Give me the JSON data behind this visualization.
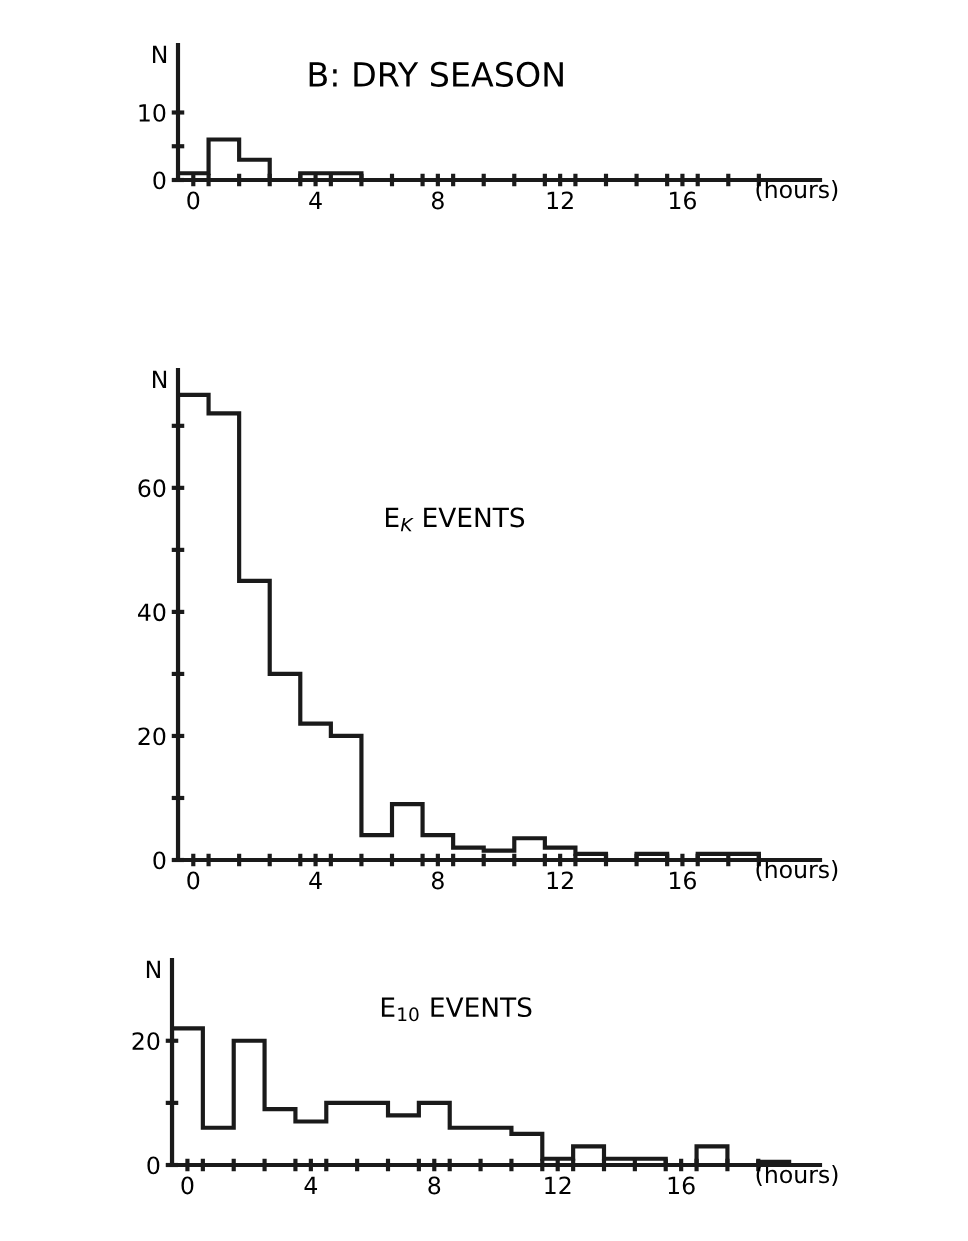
{
  "chart_data": [
    {
      "type": "histogram",
      "title": "B: DRY SEASON",
      "xlabel": "(hours)",
      "ylabel": "N",
      "bins": [
        -0.5,
        0.5,
        1.5,
        2.5,
        3.5,
        4.5,
        5.5,
        6.5,
        7.5,
        8.5,
        9.5,
        10.5,
        11.5,
        12.5,
        13.5,
        14.5,
        15.5,
        16.5,
        17.5,
        18.5,
        19.5
      ],
      "values": [
        1,
        6,
        3,
        0,
        1,
        1,
        0,
        0,
        0,
        0,
        0,
        0,
        0,
        0,
        0,
        0,
        0,
        0,
        0,
        0
      ],
      "color": "#1a1a1a",
      "xlim": [
        -0.5,
        20.5
      ],
      "ylim": [
        0,
        20
      ],
      "xticks": [
        0,
        4,
        8,
        12,
        16,
        {
          "value": 0.5,
          "label": null
        },
        {
          "value": 1.5,
          "label": null
        },
        {
          "value": 2.5,
          "label": null
        },
        {
          "value": 3.5,
          "label": null
        },
        {
          "value": 4.5,
          "label": null
        },
        {
          "value": 5.5,
          "label": null
        },
        {
          "value": 6.5,
          "label": null
        },
        {
          "value": 7.5,
          "label": null
        },
        {
          "value": 8.5,
          "label": null
        },
        {
          "value": 9.5,
          "label": null
        },
        {
          "value": 10.5,
          "label": null
        },
        {
          "value": 11.5,
          "label": null
        },
        {
          "value": 12.5,
          "label": null
        },
        {
          "value": 13.5,
          "label": null
        },
        {
          "value": 14.5,
          "label": null
        },
        {
          "value": 15.5,
          "label": null
        },
        {
          "value": 16.5,
          "label": null
        },
        {
          "value": 17.5,
          "label": null
        },
        {
          "value": 18.5,
          "label": null
        }
      ],
      "yticks": [
        0,
        10,
        {
          "value": 5,
          "label": null
        }
      ],
      "grid": false
    },
    {
      "type": "histogram",
      "xlabel": "(hours)",
      "ylabel": "N",
      "annotations": [
        "E$_{K}$ EVENTS"
      ],
      "bins": [
        -0.5,
        0.5,
        1.5,
        2.5,
        3.5,
        4.5,
        5.5,
        6.5,
        7.5,
        8.5,
        9.5,
        10.5,
        11.5,
        12.5,
        13.5,
        14.5,
        15.5,
        16.5,
        17.5,
        18.5,
        19.5
      ],
      "values": [
        75,
        72,
        45,
        30,
        22,
        20,
        4,
        9,
        4,
        2,
        1.5,
        3.5,
        2,
        1,
        0,
        1,
        0,
        1,
        1,
        0
      ],
      "color": "#1a1a1a",
      "xlim": [
        -0.5,
        20.5
      ],
      "ylim": [
        0,
        79
      ],
      "xticks": [
        0,
        4,
        8,
        12,
        16,
        {
          "value": 0.5,
          "label": null
        },
        {
          "value": 1.5,
          "label": null
        },
        {
          "value": 2.5,
          "label": null
        },
        {
          "value": 3.5,
          "label": null
        },
        {
          "value": 4.5,
          "label": null
        },
        {
          "value": 5.5,
          "label": null
        },
        {
          "value": 6.5,
          "label": null
        },
        {
          "value": 7.5,
          "label": null
        },
        {
          "value": 8.5,
          "label": null
        },
        {
          "value": 9.5,
          "label": null
        },
        {
          "value": 10.5,
          "label": null
        },
        {
          "value": 11.5,
          "label": null
        },
        {
          "value": 12.5,
          "label": null
        },
        {
          "value": 13.5,
          "label": null
        },
        {
          "value": 14.5,
          "label": null
        },
        {
          "value": 15.5,
          "label": null
        },
        {
          "value": 16.5,
          "label": null
        },
        {
          "value": 17.5,
          "label": null
        },
        {
          "value": 18.5,
          "label": null
        }
      ],
      "yticks": [
        0,
        20,
        40,
        60,
        {
          "value": 10,
          "label": null
        },
        {
          "value": 30,
          "label": null
        },
        {
          "value": 50,
          "label": null
        },
        {
          "value": 70,
          "label": null
        }
      ],
      "grid": false
    },
    {
      "type": "histogram",
      "xlabel": "(hours)",
      "ylabel": "N",
      "annotations": [
        "E$_{10}$ EVENTS"
      ],
      "bins": [
        -0.5,
        0.5,
        1.5,
        2.5,
        3.5,
        4.5,
        5.5,
        6.5,
        7.5,
        8.5,
        9.5,
        10.5,
        11.5,
        12.5,
        13.5,
        14.5,
        15.5,
        16.5,
        17.5,
        18.5,
        19.5
      ],
      "values": [
        22,
        6,
        20,
        9,
        7,
        10,
        10,
        8,
        10,
        6,
        6,
        5,
        1,
        3,
        1,
        1,
        0,
        3,
        0,
        0.5
      ],
      "color": "#1a1a1a",
      "xlim": [
        -0.5,
        20.5
      ],
      "ylim": [
        0,
        33
      ],
      "xticks": [
        0,
        4,
        8,
        12,
        16,
        {
          "value": 0.5,
          "label": null
        },
        {
          "value": 1.5,
          "label": null
        },
        {
          "value": 2.5,
          "label": null
        },
        {
          "value": 3.5,
          "label": null
        },
        {
          "value": 4.5,
          "label": null
        },
        {
          "value": 5.5,
          "label": null
        },
        {
          "value": 6.5,
          "label": null
        },
        {
          "value": 7.5,
          "label": null
        },
        {
          "value": 8.5,
          "label": null
        },
        {
          "value": 9.5,
          "label": null
        },
        {
          "value": 10.5,
          "label": null
        },
        {
          "value": 11.5,
          "label": null
        },
        {
          "value": 12.5,
          "label": null
        },
        {
          "value": 13.5,
          "label": null
        },
        {
          "value": 14.5,
          "label": null
        },
        {
          "value": 15.5,
          "label": null
        },
        {
          "value": 16.5,
          "label": null
        },
        {
          "value": 17.5,
          "label": null
        },
        {
          "value": 18.5,
          "label": null
        }
      ],
      "yticks": [
        0,
        20,
        {
          "value": 10,
          "label": null
        }
      ],
      "grid": false
    }
  ]
}
